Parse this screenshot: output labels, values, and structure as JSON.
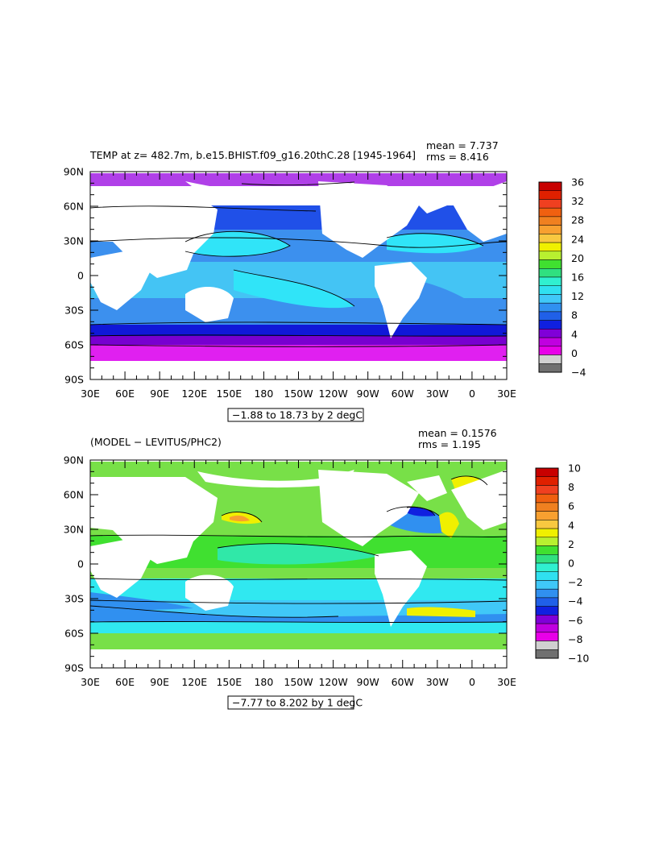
{
  "panels": [
    {
      "title": "TEMP at z= 482.7m, b.e15.BHIST.f09_g16.20thC.28 [1945-1964]",
      "mean_label": "mean = 7.737",
      "rms_label": "rms = 8.416",
      "range_label": "−1.88 to 18.73 by 2 degC",
      "lat_labels": [
        "90N",
        "60N",
        "30N",
        "0",
        "30S",
        "60S",
        "90S"
      ],
      "lon_labels": [
        "30E",
        "60E",
        "90E",
        "120E",
        "150E",
        "180",
        "150W",
        "120W",
        "90W",
        "60W",
        "30W",
        "0",
        "30E"
      ],
      "colorbar_labels": [
        "36",
        "32",
        "28",
        "24",
        "20",
        "16",
        "12",
        "8",
        "4",
        "0",
        "−4"
      ],
      "colorbar_colors": [
        "#c80000",
        "#e02000",
        "#f04020",
        "#f06010",
        "#f08020",
        "#f8a030",
        "#f8c840",
        "#f0f000",
        "#b8f030",
        "#40e030",
        "#30e080",
        "#30f0d0",
        "#30e0f0",
        "#40c8f8",
        "#3090f0",
        "#2060e8",
        "#1020e0",
        "#8000d8",
        "#c000e0",
        "#e800e8",
        "#d0d0d0",
        "#707070"
      ],
      "ocean_palette": {
        "arctic": "#b040e8",
        "north_subpolar": "#2050e8",
        "north_pacific": "#3c90ee",
        "subtropical": "#44c4f4",
        "tropical_warm": "#30e4f8",
        "southern_band": "#1018d8",
        "southern": "#7800d0",
        "antarctic": "#e020f0"
      }
    },
    {
      "title": "(MODEL − LEVITUS/PHC2)",
      "mean_label": "mean = 0.1576",
      "rms_label": "rms = 1.195",
      "range_label": "−7.77 to 8.202 by 1 degC",
      "lat_labels": [
        "90N",
        "60N",
        "30N",
        "0",
        "30S",
        "60S",
        "90S"
      ],
      "lon_labels": [
        "30E",
        "60E",
        "90E",
        "120E",
        "150E",
        "180",
        "150W",
        "120W",
        "90W",
        "60W",
        "30W",
        "0",
        "30E"
      ],
      "colorbar_labels": [
        "10",
        "8",
        "6",
        "4",
        "2",
        "0",
        "−2",
        "−4",
        "−6",
        "−8",
        "−10"
      ],
      "colorbar_colors": [
        "#c80000",
        "#e02000",
        "#f04020",
        "#f06010",
        "#f08020",
        "#f8a030",
        "#f8c840",
        "#f0f000",
        "#b8f030",
        "#40e030",
        "#30e080",
        "#30f0d0",
        "#30e0f0",
        "#40c8f8",
        "#3090f0",
        "#2060e8",
        "#1020e0",
        "#8000d8",
        "#c000e0",
        "#e800e8",
        "#d0d0d0",
        "#707070"
      ],
      "ocean_palette": {
        "base": "#78e048",
        "green": "#40e030",
        "teal": "#30e8a8",
        "cyan": "#30e8f0",
        "light_blue": "#40c8f8",
        "mid_blue": "#3090f0",
        "warm": "#f0f000",
        "orange": "#f8a030"
      }
    }
  ]
}
